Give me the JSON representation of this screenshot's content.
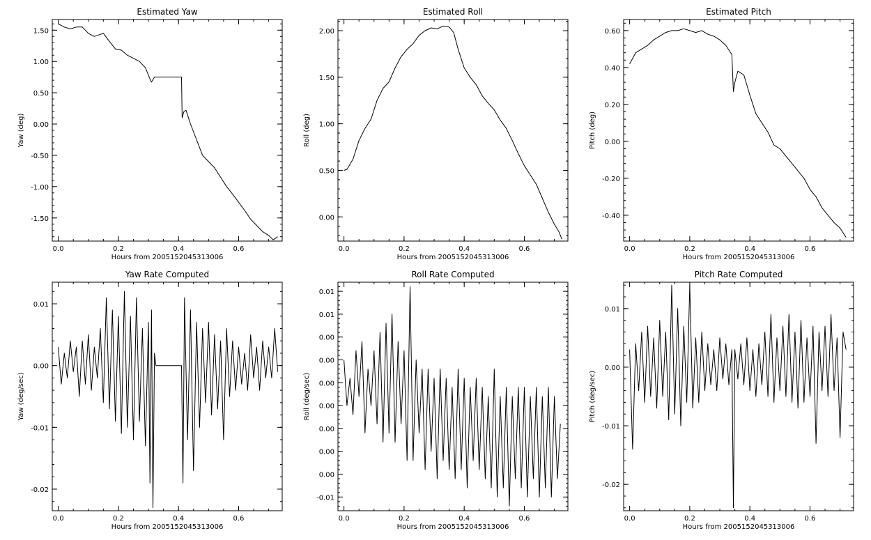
{
  "figure": {
    "xlabel": "Hours from 2005152045313006"
  },
  "chart_data": [
    {
      "type": "line",
      "title": "Estimated Yaw",
      "xlabel": "Hours from 2005152045313006",
      "ylabel": "Yaw (deg)",
      "xlim": [
        -0.02,
        0.745
      ],
      "ylim": [
        -1.87,
        1.67
      ],
      "xticks": [
        0.0,
        0.2,
        0.4,
        0.6
      ],
      "xtick_labels": [
        "0.0",
        "0.2",
        "0.4",
        "0.6"
      ],
      "yticks": [
        1.5,
        1.0,
        0.5,
        0.0,
        -0.5,
        -1.0,
        -1.5
      ],
      "ytick_labels": [
        "1.50",
        "1.00",
        "0.50",
        "0.00",
        "-0.50",
        "-1.00",
        "-1.50"
      ],
      "series": [
        {
          "x": [
            0.0,
            0.02,
            0.04,
            0.06,
            0.08,
            0.1,
            0.12,
            0.15,
            0.17,
            0.19,
            0.21,
            0.23,
            0.25,
            0.27,
            0.29,
            0.305,
            0.31,
            0.32,
            0.35,
            0.38,
            0.41,
            0.412,
            0.418,
            0.425,
            0.44,
            0.46,
            0.48,
            0.5,
            0.52,
            0.54,
            0.56,
            0.58,
            0.6,
            0.62,
            0.64,
            0.66,
            0.68,
            0.7,
            0.715,
            0.73
          ],
          "y": [
            1.6,
            1.55,
            1.52,
            1.55,
            1.55,
            1.45,
            1.4,
            1.45,
            1.32,
            1.2,
            1.18,
            1.1,
            1.05,
            1.0,
            0.9,
            0.72,
            0.67,
            0.75,
            0.75,
            0.75,
            0.75,
            0.1,
            0.2,
            0.22,
            0.0,
            -0.25,
            -0.5,
            -0.6,
            -0.7,
            -0.85,
            -1.0,
            -1.12,
            -1.25,
            -1.38,
            -1.52,
            -1.62,
            -1.72,
            -1.78,
            -1.85,
            -1.8
          ]
        }
      ]
    },
    {
      "type": "line",
      "title": "Estimated Roll",
      "xlabel": "Hours from 2005152045313006",
      "ylabel": "Roll (deg)",
      "xlim": [
        -0.02,
        0.745
      ],
      "ylim": [
        -0.26,
        2.12
      ],
      "xticks": [
        0.0,
        0.2,
        0.4,
        0.6
      ],
      "xtick_labels": [
        "0.0",
        "0.2",
        "0.4",
        "0.6"
      ],
      "yticks": [
        2.0,
        1.5,
        1.0,
        0.5,
        0.0
      ],
      "ytick_labels": [
        "2.00",
        "1.50",
        "1.00",
        "0.50",
        "0.00"
      ],
      "series": [
        {
          "x": [
            0.0,
            0.01,
            0.03,
            0.05,
            0.07,
            0.09,
            0.11,
            0.13,
            0.15,
            0.17,
            0.19,
            0.21,
            0.23,
            0.25,
            0.27,
            0.29,
            0.31,
            0.33,
            0.35,
            0.365,
            0.38,
            0.4,
            0.42,
            0.44,
            0.46,
            0.48,
            0.5,
            0.52,
            0.54,
            0.56,
            0.58,
            0.6,
            0.62,
            0.64,
            0.66,
            0.68,
            0.7,
            0.715,
            0.725
          ],
          "y": [
            0.5,
            0.51,
            0.62,
            0.82,
            0.95,
            1.05,
            1.25,
            1.38,
            1.45,
            1.6,
            1.72,
            1.8,
            1.86,
            1.95,
            2.0,
            2.03,
            2.02,
            2.05,
            2.04,
            1.98,
            1.8,
            1.6,
            1.5,
            1.42,
            1.3,
            1.22,
            1.15,
            1.04,
            0.95,
            0.82,
            0.68,
            0.55,
            0.45,
            0.35,
            0.2,
            0.05,
            -0.08,
            -0.16,
            -0.24
          ]
        }
      ]
    },
    {
      "type": "line",
      "title": "Estimated Pitch",
      "xlabel": "Hours from 2005152045313006",
      "ylabel": "Pitch (deg)",
      "xlim": [
        -0.02,
        0.745
      ],
      "ylim": [
        -0.54,
        0.66
      ],
      "xticks": [
        0.0,
        0.2,
        0.4,
        0.6
      ],
      "xtick_labels": [
        "0.0",
        "0.2",
        "0.4",
        "0.6"
      ],
      "yticks": [
        0.6,
        0.4,
        0.2,
        0.0,
        -0.2,
        -0.4
      ],
      "ytick_labels": [
        "0.60",
        "0.40",
        "0.20",
        "0.00",
        "-0.20",
        "-0.40"
      ],
      "series": [
        {
          "x": [
            0.0,
            0.02,
            0.04,
            0.06,
            0.08,
            0.1,
            0.12,
            0.14,
            0.16,
            0.18,
            0.2,
            0.22,
            0.24,
            0.26,
            0.28,
            0.3,
            0.32,
            0.34,
            0.345,
            0.35,
            0.36,
            0.38,
            0.4,
            0.42,
            0.44,
            0.46,
            0.48,
            0.5,
            0.52,
            0.54,
            0.56,
            0.58,
            0.6,
            0.62,
            0.64,
            0.66,
            0.68,
            0.7,
            0.72
          ],
          "y": [
            0.42,
            0.48,
            0.5,
            0.52,
            0.55,
            0.57,
            0.59,
            0.6,
            0.6,
            0.61,
            0.6,
            0.59,
            0.6,
            0.58,
            0.57,
            0.55,
            0.52,
            0.47,
            0.27,
            0.32,
            0.38,
            0.36,
            0.25,
            0.15,
            0.1,
            0.05,
            -0.02,
            -0.04,
            -0.08,
            -0.12,
            -0.16,
            -0.2,
            -0.26,
            -0.3,
            -0.36,
            -0.4,
            -0.44,
            -0.47,
            -0.52
          ]
        }
      ]
    },
    {
      "type": "line",
      "title": "Yaw Rate Computed",
      "xlabel": "Hours from 2005152045313006",
      "ylabel": "Yaw (deg/sec)",
      "xlim": [
        -0.02,
        0.745
      ],
      "ylim": [
        -0.0235,
        0.0135
      ],
      "xticks": [
        0.0,
        0.2,
        0.4,
        0.6
      ],
      "xtick_labels": [
        "0.0",
        "0.2",
        "0.4",
        "0.6"
      ],
      "yticks": [
        0.01,
        0.0,
        -0.01,
        -0.02
      ],
      "ytick_labels": [
        "0.01",
        "0.00",
        "-0.01",
        "-0.02"
      ],
      "noise_note": "dense oscillating series; flat at 0 between 0.325 and 0.41",
      "series": [
        {
          "x": [
            0.0,
            0.01,
            0.02,
            0.03,
            0.04,
            0.05,
            0.06,
            0.07,
            0.08,
            0.09,
            0.1,
            0.11,
            0.12,
            0.13,
            0.14,
            0.15,
            0.16,
            0.17,
            0.18,
            0.19,
            0.2,
            0.21,
            0.22,
            0.23,
            0.24,
            0.25,
            0.26,
            0.27,
            0.28,
            0.29,
            0.3,
            0.305,
            0.31,
            0.315,
            0.32,
            0.325,
            0.41,
            0.415,
            0.42,
            0.43,
            0.44,
            0.45,
            0.46,
            0.47,
            0.48,
            0.49,
            0.5,
            0.51,
            0.52,
            0.53,
            0.54,
            0.55,
            0.56,
            0.57,
            0.58,
            0.59,
            0.6,
            0.61,
            0.62,
            0.63,
            0.64,
            0.65,
            0.66,
            0.67,
            0.68,
            0.69,
            0.7,
            0.71,
            0.72,
            0.73
          ],
          "y": [
            0.003,
            -0.003,
            0.002,
            -0.002,
            0.004,
            -0.001,
            0.003,
            -0.005,
            0.004,
            -0.003,
            0.005,
            -0.004,
            0.003,
            -0.002,
            0.006,
            -0.006,
            0.011,
            -0.007,
            0.009,
            -0.009,
            0.008,
            -0.011,
            0.012,
            -0.01,
            0.008,
            -0.012,
            0.011,
            -0.009,
            0.006,
            -0.013,
            0.007,
            -0.019,
            0.009,
            -0.023,
            0.002,
            0.0,
            0.0,
            -0.019,
            0.011,
            -0.012,
            0.009,
            -0.017,
            0.007,
            -0.01,
            0.006,
            -0.006,
            0.007,
            -0.008,
            0.005,
            -0.007,
            0.004,
            -0.012,
            0.006,
            -0.005,
            0.004,
            -0.004,
            0.003,
            -0.003,
            0.002,
            -0.004,
            0.005,
            -0.002,
            0.003,
            -0.004,
            0.004,
            -0.002,
            0.003,
            -0.002,
            0.006,
            -0.001
          ]
        }
      ]
    },
    {
      "type": "line",
      "title": "Roll Rate Computed",
      "xlabel": "Hours from 2005152045313006",
      "ylabel": "Roll (deg/sec)",
      "xlim": [
        -0.02,
        0.745
      ],
      "ylim": [
        -0.0115,
        0.0135
      ],
      "xticks": [
        0.0,
        0.2,
        0.4,
        0.6
      ],
      "xtick_labels": [
        "0.0",
        "0.2",
        "0.4",
        "0.6"
      ],
      "yticks": [
        0.0125,
        0.01,
        0.0075,
        0.005,
        0.0025,
        0.0,
        -0.0025,
        -0.005,
        -0.0075,
        -0.01
      ],
      "ytick_labels": [
        "0.01",
        "0.01",
        "0.00",
        "0.00",
        "0.00",
        "0.00",
        "0.00",
        "0.00",
        "0.00",
        "-0.01"
      ],
      "series": [
        {
          "x": [
            0.0,
            0.01,
            0.02,
            0.03,
            0.04,
            0.05,
            0.06,
            0.07,
            0.08,
            0.09,
            0.1,
            0.11,
            0.12,
            0.13,
            0.14,
            0.15,
            0.16,
            0.17,
            0.18,
            0.19,
            0.2,
            0.21,
            0.22,
            0.23,
            0.24,
            0.25,
            0.26,
            0.27,
            0.28,
            0.29,
            0.3,
            0.31,
            0.32,
            0.33,
            0.34,
            0.35,
            0.36,
            0.37,
            0.38,
            0.39,
            0.4,
            0.41,
            0.42,
            0.43,
            0.44,
            0.45,
            0.46,
            0.47,
            0.48,
            0.49,
            0.5,
            0.51,
            0.52,
            0.53,
            0.54,
            0.55,
            0.56,
            0.57,
            0.58,
            0.59,
            0.6,
            0.61,
            0.62,
            0.63,
            0.64,
            0.65,
            0.66,
            0.67,
            0.68,
            0.69,
            0.7,
            0.71,
            0.72
          ],
          "y": [
            0.005,
            0.0,
            0.003,
            -0.001,
            0.006,
            0.001,
            0.007,
            -0.003,
            0.004,
            0.0,
            0.006,
            -0.002,
            0.008,
            -0.004,
            0.009,
            -0.003,
            0.01,
            -0.004,
            0.007,
            -0.002,
            0.006,
            -0.006,
            0.013,
            -0.006,
            0.005,
            -0.003,
            0.004,
            -0.007,
            0.004,
            -0.005,
            0.003,
            -0.008,
            0.004,
            -0.006,
            0.003,
            -0.007,
            0.002,
            -0.008,
            0.004,
            -0.007,
            0.003,
            -0.009,
            0.002,
            -0.006,
            0.003,
            -0.007,
            0.002,
            -0.008,
            0.001,
            -0.009,
            0.004,
            -0.01,
            0.001,
            -0.009,
            0.002,
            -0.011,
            0.001,
            -0.008,
            0.002,
            -0.009,
            0.002,
            -0.01,
            0.001,
            -0.008,
            0.002,
            -0.01,
            0.001,
            -0.009,
            0.002,
            -0.01,
            0.001,
            -0.008,
            -0.002
          ]
        }
      ]
    },
    {
      "type": "line",
      "title": "Pitch Rate Computed",
      "xlabel": "Hours from 2005152045313006",
      "ylabel": "Pitch (deg/sec)",
      "xlim": [
        -0.02,
        0.745
      ],
      "ylim": [
        -0.0245,
        0.0145
      ],
      "xticks": [
        0.0,
        0.2,
        0.4,
        0.6
      ],
      "xtick_labels": [
        "0.0",
        "0.2",
        "0.4",
        "0.6"
      ],
      "yticks": [
        0.01,
        0.0,
        -0.01,
        -0.02
      ],
      "ytick_labels": [
        "0.01",
        "0.00",
        "-0.01",
        "-0.02"
      ],
      "series": [
        {
          "x": [
            0.0,
            0.01,
            0.02,
            0.03,
            0.04,
            0.05,
            0.06,
            0.07,
            0.08,
            0.09,
            0.1,
            0.11,
            0.12,
            0.13,
            0.14,
            0.15,
            0.16,
            0.17,
            0.18,
            0.19,
            0.2,
            0.21,
            0.22,
            0.23,
            0.24,
            0.25,
            0.26,
            0.27,
            0.28,
            0.29,
            0.3,
            0.31,
            0.32,
            0.33,
            0.34,
            0.345,
            0.35,
            0.36,
            0.37,
            0.38,
            0.39,
            0.4,
            0.41,
            0.42,
            0.43,
            0.44,
            0.45,
            0.46,
            0.47,
            0.48,
            0.49,
            0.5,
            0.51,
            0.52,
            0.53,
            0.54,
            0.55,
            0.56,
            0.57,
            0.58,
            0.59,
            0.6,
            0.61,
            0.62,
            0.63,
            0.64,
            0.65,
            0.66,
            0.67,
            0.68,
            0.69,
            0.7,
            0.71,
            0.72
          ],
          "y": [
            0.003,
            -0.014,
            0.004,
            -0.004,
            0.006,
            -0.006,
            0.007,
            -0.005,
            0.005,
            -0.007,
            0.008,
            -0.005,
            0.006,
            -0.009,
            0.014,
            -0.008,
            0.01,
            -0.01,
            0.007,
            -0.006,
            0.014,
            -0.007,
            0.005,
            -0.006,
            0.006,
            -0.004,
            0.004,
            -0.003,
            0.003,
            -0.004,
            0.005,
            -0.002,
            0.004,
            -0.003,
            0.003,
            -0.024,
            0.003,
            -0.002,
            0.004,
            -0.003,
            0.005,
            -0.004,
            0.003,
            -0.005,
            0.004,
            -0.003,
            0.006,
            -0.005,
            0.009,
            -0.006,
            0.005,
            -0.004,
            0.007,
            -0.005,
            0.009,
            -0.006,
            0.006,
            -0.007,
            0.008,
            -0.006,
            0.005,
            -0.005,
            0.007,
            -0.013,
            0.006,
            -0.004,
            0.007,
            -0.005,
            0.009,
            -0.004,
            0.005,
            -0.012,
            0.006,
            0.003
          ]
        }
      ]
    }
  ]
}
